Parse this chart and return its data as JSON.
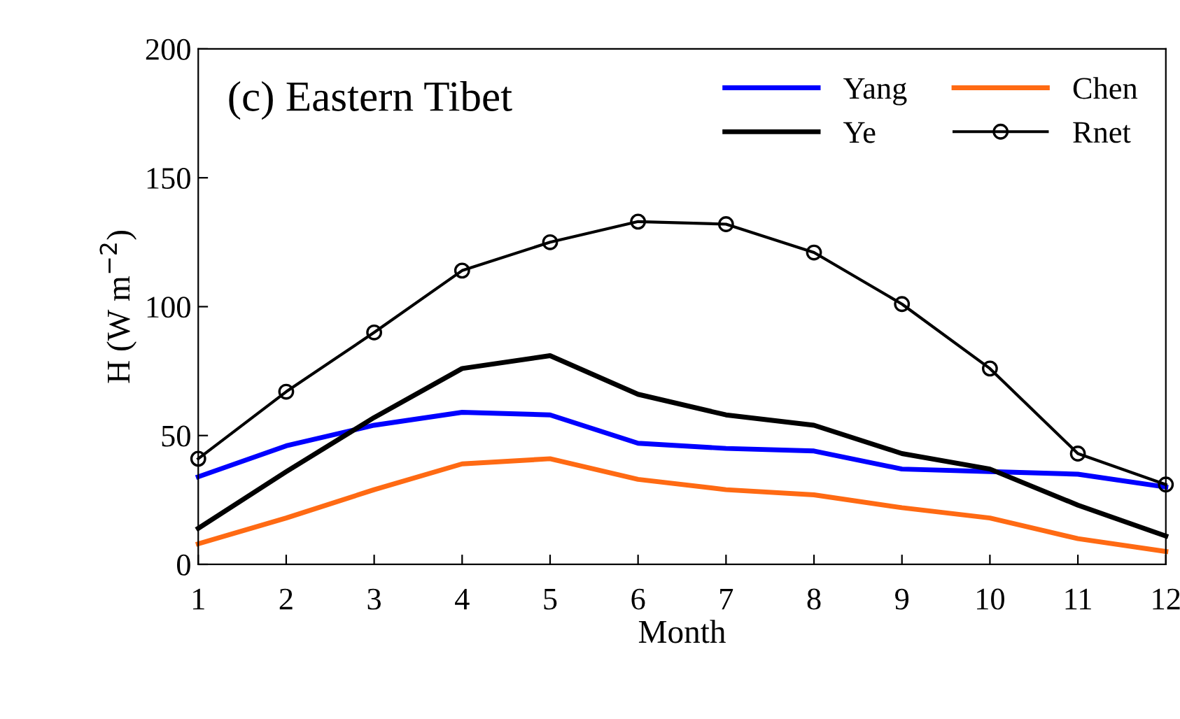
{
  "chart_data": {
    "type": "line",
    "xlabel": "Month",
    "ylabel": "H (W m$^{−2}$)",
    "annotations": [
      "(c) Eastern Tibet"
    ],
    "x": [
      1,
      2,
      3,
      4,
      5,
      6,
      7,
      8,
      9,
      10,
      11,
      12
    ],
    "xlim": [
      1,
      12
    ],
    "xticks": [
      1,
      2,
      3,
      4,
      5,
      6,
      7,
      8,
      9,
      10,
      11,
      12
    ],
    "ylim": [
      0,
      200
    ],
    "yticks": [
      0,
      50,
      100,
      150,
      200
    ],
    "grid": false,
    "legend": "top right",
    "marker": "none",
    "series": [
      {
        "name": "Yang",
        "color": "#0000ff",
        "values": [
          34,
          46,
          54,
          59,
          58,
          47,
          45,
          44,
          37,
          36,
          35,
          30
        ]
      },
      {
        "name": "Ye",
        "color": "#000000",
        "values": [
          14,
          36,
          57,
          76,
          81,
          66,
          58,
          54,
          43,
          37,
          23,
          11
        ]
      },
      {
        "name": "Chen",
        "color": "#ff6a13",
        "values": [
          8,
          18,
          29,
          39,
          41,
          33,
          29,
          27,
          22,
          18,
          10,
          5
        ]
      },
      {
        "name": "Rnet",
        "color": "#000000",
        "marker": "circle",
        "values": [
          41,
          67,
          90,
          114,
          125,
          133,
          132,
          121,
          101,
          76,
          43,
          31
        ]
      }
    ]
  }
}
